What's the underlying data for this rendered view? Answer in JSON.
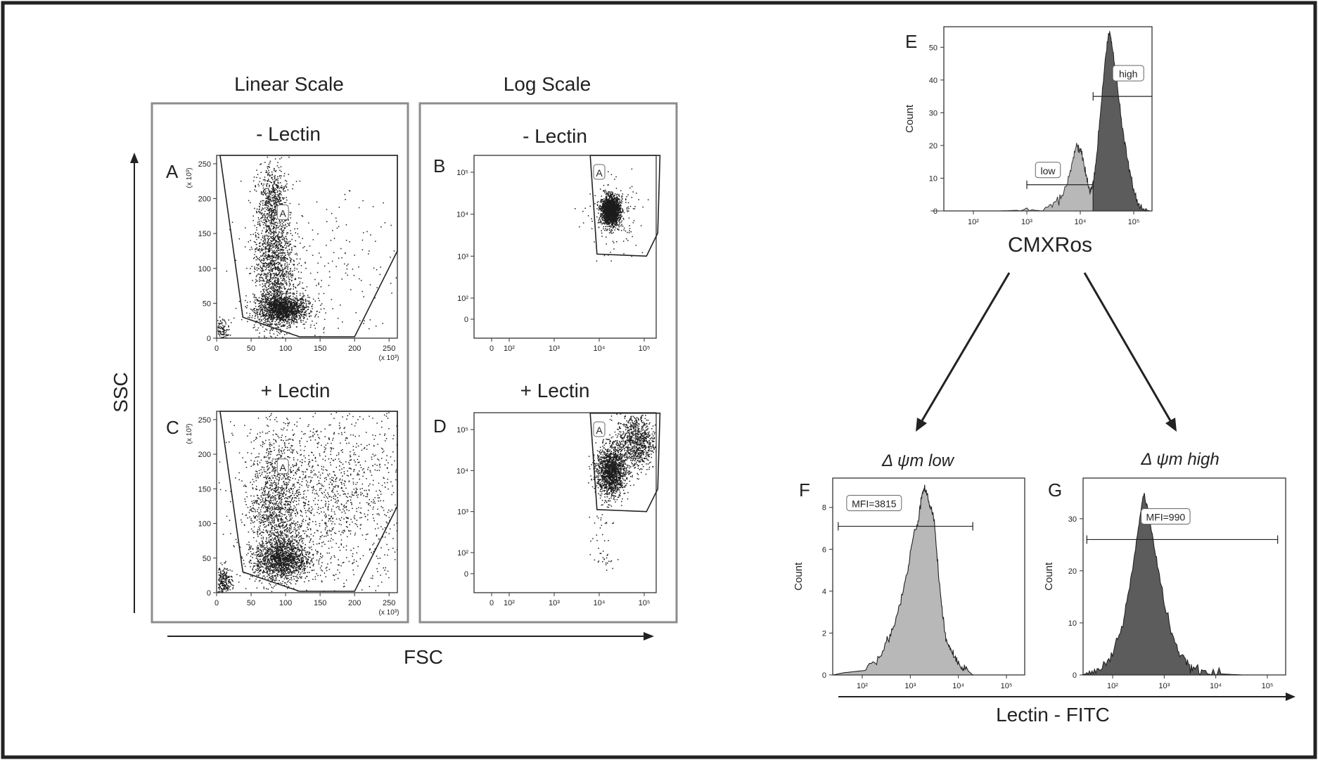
{
  "figure": {
    "linear_header": "Linear Scale",
    "log_header": "Log Scale",
    "minus_lectin": "- Lectin",
    "plus_lectin": "+ Lectin",
    "ssc": "SSC",
    "fsc": "FSC",
    "x103": "(x 10³)",
    "gate_label": "A",
    "cmxros": "CMXRos",
    "psi_low": "Δ ψm low",
    "psi_high": "Δ ψm high",
    "lectin_fitc": "Lectin - FITC",
    "count": "Count"
  },
  "colors": {
    "frame": "#222222",
    "panel_border": "#8c8c8c",
    "dots": "#1c1c1c",
    "light_fill": "#b8b8b8",
    "dark_fill": "#5c5c5c"
  },
  "chart_data": [
    {
      "id": "A",
      "type": "scatter",
      "scale": "linear",
      "condition": "- Lectin",
      "xticks": [
        "0",
        "50",
        "100",
        "150",
        "200",
        "250"
      ],
      "yticks": [
        "0",
        "50",
        "100",
        "150",
        "200",
        "250"
      ],
      "xmult": "(x 10³)",
      "ymult": "(x 10³)",
      "xlim": [
        0,
        262
      ],
      "ylim": [
        0,
        262
      ],
      "gate": {
        "name": "A",
        "vertices": [
          [
            5,
            262
          ],
          [
            262,
            262
          ],
          [
            262,
            125
          ],
          [
            200,
            2
          ],
          [
            120,
            2
          ],
          [
            38,
            30
          ]
        ]
      },
      "populations": [
        {
          "cx": 95,
          "cy": 42,
          "sx": 18,
          "sy": 10,
          "n": 1500
        },
        {
          "cx": 82,
          "cy": 110,
          "sx": 14,
          "sy": 55,
          "n": 1600
        },
        {
          "cx": 80,
          "cy": 200,
          "sx": 10,
          "sy": 26,
          "n": 380
        },
        {
          "cx": 150,
          "cy": 90,
          "sx": 60,
          "sy": 55,
          "n": 260
        },
        {
          "cx": 8,
          "cy": 12,
          "sx": 5,
          "sy": 8,
          "n": 110
        }
      ]
    },
    {
      "id": "B",
      "type": "scatter",
      "scale": "log",
      "condition": "- Lectin",
      "xticks": [
        "0",
        "10²",
        "10³",
        "10⁴",
        "10⁵"
      ],
      "yticks": [
        "0",
        "10²",
        "10³",
        "10⁴",
        "10⁵"
      ],
      "gate": {
        "name": "A",
        "vertices": [
          [
            3.8,
            5.4
          ],
          [
            5.35,
            5.4
          ],
          [
            5.3,
            3.55
          ],
          [
            5.05,
            3.0
          ],
          [
            3.95,
            3.05
          ]
        ]
      },
      "populations": [
        {
          "cx": 4.25,
          "cy": 4.1,
          "sx": 0.1,
          "sy": 0.16,
          "n": 1900
        },
        {
          "cx": 4.3,
          "cy": 4.0,
          "sx": 0.28,
          "sy": 0.4,
          "n": 220
        }
      ]
    },
    {
      "id": "C",
      "type": "scatter",
      "scale": "linear",
      "condition": "+ Lectin",
      "xticks": [
        "0",
        "50",
        "100",
        "150",
        "200",
        "250"
      ],
      "yticks": [
        "0",
        "50",
        "100",
        "150",
        "200",
        "250"
      ],
      "xmult": "(x 10³)",
      "ymult": "(x 10³)",
      "xlim": [
        0,
        262
      ],
      "ylim": [
        0,
        262
      ],
      "gate": {
        "name": "A",
        "vertices": [
          [
            5,
            262
          ],
          [
            262,
            262
          ],
          [
            262,
            125
          ],
          [
            200,
            2
          ],
          [
            120,
            2
          ],
          [
            38,
            30
          ]
        ]
      },
      "populations": [
        {
          "cx": 95,
          "cy": 48,
          "sx": 20,
          "sy": 14,
          "n": 1300
        },
        {
          "cx": 85,
          "cy": 115,
          "sx": 18,
          "sy": 55,
          "n": 1300
        },
        {
          "cx": 160,
          "cy": 140,
          "sx": 65,
          "sy": 65,
          "n": 1500
        },
        {
          "cx": 10,
          "cy": 15,
          "sx": 6,
          "sy": 12,
          "n": 260
        }
      ]
    },
    {
      "id": "D",
      "type": "scatter",
      "scale": "log",
      "condition": "+ Lectin",
      "xticks": [
        "0",
        "10²",
        "10³",
        "10⁴",
        "10⁵"
      ],
      "yticks": [
        "0",
        "10²",
        "10³",
        "10⁴",
        "10⁵"
      ],
      "gate": {
        "name": "A",
        "vertices": [
          [
            3.8,
            5.4
          ],
          [
            5.35,
            5.4
          ],
          [
            5.3,
            3.55
          ],
          [
            5.05,
            3.0
          ],
          [
            3.95,
            3.05
          ]
        ]
      },
      "populations": [
        {
          "cx": 4.25,
          "cy": 4.0,
          "sx": 0.16,
          "sy": 0.3,
          "n": 1500
        },
        {
          "cx": 4.8,
          "cy": 4.7,
          "sx": 0.22,
          "sy": 0.35,
          "n": 900
        },
        {
          "cx": 4.05,
          "cy": 2.2,
          "sx": 0.15,
          "sy": 1.0,
          "n": 60
        }
      ]
    },
    {
      "id": "E",
      "type": "area",
      "xlabel": "CMXRos",
      "ylabel": "Count",
      "xticks": [
        "10²",
        "10³",
        "10⁴",
        "10⁵"
      ],
      "yticks": [
        "0",
        "10",
        "20",
        "30",
        "40",
        "50"
      ],
      "ylim": [
        0,
        55
      ],
      "curve": [
        [
          1.2,
          0
        ],
        [
          2.5,
          0
        ],
        [
          3.0,
          0.3
        ],
        [
          3.4,
          1
        ],
        [
          3.6,
          3
        ],
        [
          3.75,
          8
        ],
        [
          3.85,
          15
        ],
        [
          3.93,
          20
        ],
        [
          3.98,
          19
        ],
        [
          4.05,
          16
        ],
        [
          4.12,
          10
        ],
        [
          4.18,
          6
        ],
        [
          4.24,
          8
        ],
        [
          4.3,
          16
        ],
        [
          4.38,
          30
        ],
        [
          4.45,
          44
        ],
        [
          4.52,
          53
        ],
        [
          4.55,
          55
        ],
        [
          4.6,
          50
        ],
        [
          4.68,
          40
        ],
        [
          4.78,
          26
        ],
        [
          4.9,
          14
        ],
        [
          5.0,
          6
        ],
        [
          5.1,
          2
        ],
        [
          5.2,
          0.5
        ],
        [
          5.3,
          0
        ]
      ],
      "split_x": 4.24,
      "gates": [
        {
          "label": "low",
          "x1": 3.0,
          "x2": 4.24,
          "y": 8
        },
        {
          "label": "high",
          "x1": 4.24,
          "x2": 5.35,
          "y": 35
        }
      ]
    },
    {
      "id": "F",
      "type": "area",
      "title": "Δ ψm low",
      "ylabel": "Count",
      "xticks": [
        "10²",
        "10³",
        "10⁴",
        "10⁵"
      ],
      "yticks": [
        "0",
        "2",
        "4",
        "6",
        "8"
      ],
      "ylim": [
        0,
        9.2
      ],
      "curve": [
        [
          1.4,
          0
        ],
        [
          1.6,
          0.1
        ],
        [
          2.0,
          0.2
        ],
        [
          2.3,
          0.7
        ],
        [
          2.5,
          1.5
        ],
        [
          2.65,
          2.3
        ],
        [
          2.8,
          3.5
        ],
        [
          2.95,
          5
        ],
        [
          3.05,
          6.5
        ],
        [
          3.15,
          7.2
        ],
        [
          3.22,
          8.4
        ],
        [
          3.28,
          9.0
        ],
        [
          3.35,
          8.6
        ],
        [
          3.42,
          8.0
        ],
        [
          3.5,
          7.4
        ],
        [
          3.58,
          5.0
        ],
        [
          3.66,
          3.0
        ],
        [
          3.74,
          1.8
        ],
        [
          3.82,
          1.4
        ],
        [
          3.9,
          0.9
        ],
        [
          4.0,
          0.6
        ],
        [
          4.1,
          0.4
        ],
        [
          4.2,
          0.2
        ],
        [
          4.3,
          0
        ]
      ],
      "gate": {
        "label": "MFI=3815",
        "x1": 1.5,
        "x2": 4.3,
        "y": 7.1
      }
    },
    {
      "id": "G",
      "type": "area",
      "title": "Δ ψm high",
      "ylabel": "Count",
      "xticks": [
        "10²",
        "10³",
        "10⁴",
        "10⁵"
      ],
      "yticks": [
        "0",
        "10",
        "20",
        "30"
      ],
      "ylim": [
        0,
        37
      ],
      "curve": [
        [
          1.4,
          0
        ],
        [
          1.6,
          0.5
        ],
        [
          1.8,
          1.5
        ],
        [
          2.0,
          4
        ],
        [
          2.2,
          10
        ],
        [
          2.35,
          18
        ],
        [
          2.5,
          28
        ],
        [
          2.6,
          35
        ],
        [
          2.72,
          30
        ],
        [
          2.85,
          22
        ],
        [
          3.0,
          14
        ],
        [
          3.15,
          8
        ],
        [
          3.3,
          4
        ],
        [
          3.45,
          2
        ],
        [
          3.6,
          1
        ],
        [
          3.8,
          0.5
        ],
        [
          4.1,
          0.2
        ],
        [
          4.5,
          0
        ]
      ],
      "gate": {
        "label": "MFI=990",
        "x1": 1.5,
        "x2": 5.2,
        "y": 26
      }
    }
  ]
}
